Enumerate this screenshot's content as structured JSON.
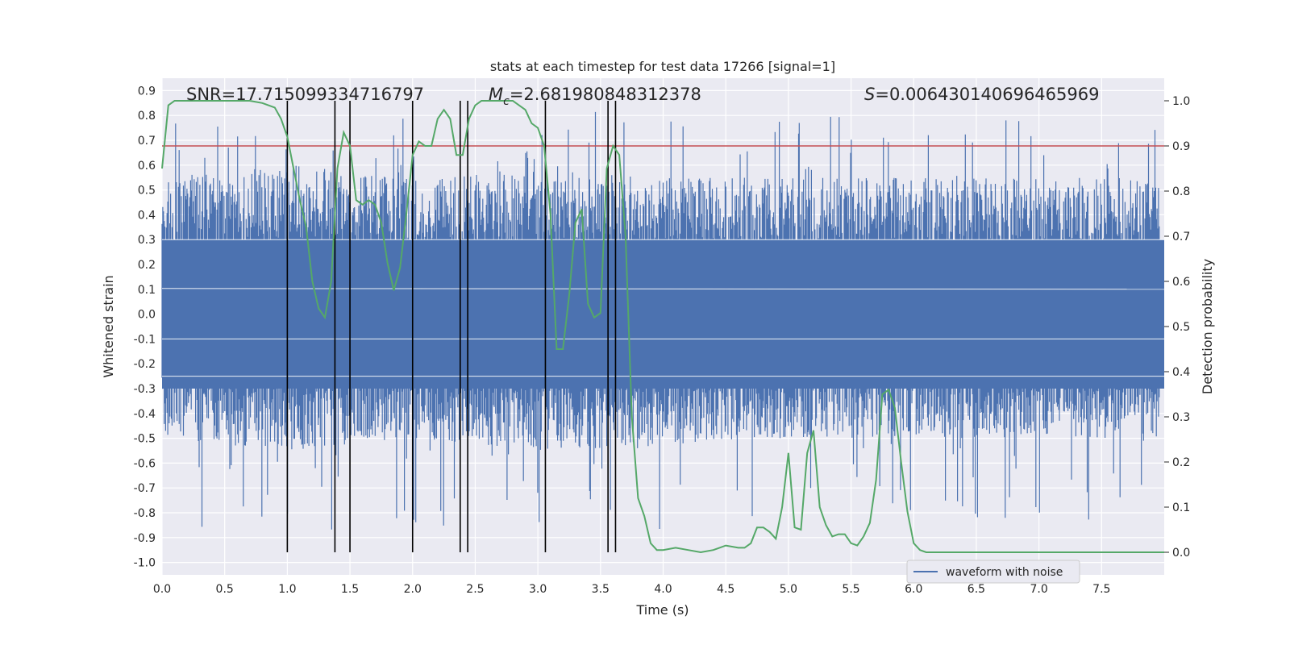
{
  "chart_data": {
    "type": "line",
    "title": "stats at each timestep for test data 17266 [signal=1]",
    "xlabel": "Time (s)",
    "ylabel": "Whitened strain",
    "y2label": "Detection probability",
    "xlim": [
      0.0,
      8.0
    ],
    "ylim": [
      -1.05,
      0.95
    ],
    "y2lim": [
      -0.05,
      1.05
    ],
    "xticks": [
      "0.0",
      "0.5",
      "1.0",
      "1.5",
      "2.0",
      "2.5",
      "3.0",
      "3.5",
      "4.0",
      "4.5",
      "5.0",
      "5.5",
      "6.0",
      "6.5",
      "7.0",
      "7.5"
    ],
    "yticks": [
      "0.9",
      "0.8",
      "0.7",
      "0.6",
      "0.5",
      "0.4",
      "0.3",
      "0.2",
      "0.1",
      "0.0",
      "-0.1",
      "-0.2",
      "-0.3",
      "-0.4",
      "-0.5",
      "-0.6",
      "-0.7",
      "-0.8",
      "-0.9",
      "-1.0"
    ],
    "y2ticks": [
      "1.0",
      "0.9",
      "0.8",
      "0.7",
      "0.6",
      "0.5",
      "0.4",
      "0.3",
      "0.2",
      "0.1",
      "0.0"
    ],
    "grid": true,
    "legend_position": "lower-right",
    "annotations": {
      "snr": "SNR=17.715099334716797",
      "mc_symbol": "M",
      "mc_sub": "c",
      "mc_value": "=2.681980848312378",
      "s_symbol": "S",
      "s_value": "=0.006430140696465969"
    },
    "series": [
      {
        "name": "waveform with noise",
        "axis": "left",
        "color": "#4c72b0",
        "description_envelope": {
          "t": [
            0.0,
            1.0,
            2.0,
            3.0,
            3.8,
            4.5,
            5.5,
            6.5,
            7.5,
            8.0
          ],
          "upper": [
            0.55,
            0.6,
            0.55,
            0.6,
            0.55,
            0.55,
            0.55,
            0.55,
            0.55,
            0.55
          ],
          "lower": [
            -0.5,
            -0.55,
            -0.5,
            -0.55,
            -0.55,
            -0.5,
            -0.5,
            -0.5,
            -0.5,
            -0.5
          ]
        }
      },
      {
        "name": "",
        "axis": "right",
        "color": "#55a868",
        "x": [
          0.0,
          0.05,
          0.1,
          0.2,
          0.3,
          0.4,
          0.5,
          0.6,
          0.7,
          0.8,
          0.9,
          0.95,
          1.0,
          1.05,
          1.1,
          1.15,
          1.2,
          1.25,
          1.3,
          1.35,
          1.4,
          1.45,
          1.5,
          1.55,
          1.6,
          1.65,
          1.7,
          1.75,
          1.8,
          1.85,
          1.9,
          1.95,
          2.0,
          2.05,
          2.1,
          2.15,
          2.2,
          2.25,
          2.3,
          2.35,
          2.4,
          2.45,
          2.5,
          2.55,
          2.6,
          2.7,
          2.8,
          2.9,
          2.95,
          3.0,
          3.05,
          3.1,
          3.15,
          3.2,
          3.25,
          3.3,
          3.35,
          3.4,
          3.45,
          3.5,
          3.55,
          3.6,
          3.65,
          3.7,
          3.75,
          3.8,
          3.85,
          3.9,
          3.95,
          4.0,
          4.1,
          4.2,
          4.3,
          4.4,
          4.5,
          4.6,
          4.65,
          4.7,
          4.75,
          4.8,
          4.85,
          4.9,
          4.95,
          5.0,
          5.05,
          5.1,
          5.15,
          5.2,
          5.25,
          5.3,
          5.35,
          5.4,
          5.45,
          5.5,
          5.55,
          5.6,
          5.65,
          5.7,
          5.75,
          5.8,
          5.85,
          5.9,
          5.95,
          6.0,
          6.05,
          6.1,
          6.15,
          6.2,
          6.3,
          6.4,
          6.5,
          6.6,
          6.8,
          7.0,
          7.2,
          7.4,
          7.6,
          7.8,
          8.0
        ],
        "y": [
          0.85,
          0.99,
          1.0,
          1.0,
          1.0,
          1.0,
          1.0,
          1.0,
          1.0,
          0.995,
          0.985,
          0.96,
          0.92,
          0.85,
          0.78,
          0.72,
          0.6,
          0.54,
          0.52,
          0.6,
          0.85,
          0.93,
          0.9,
          0.78,
          0.77,
          0.78,
          0.77,
          0.73,
          0.64,
          0.58,
          0.63,
          0.75,
          0.88,
          0.91,
          0.9,
          0.9,
          0.96,
          0.98,
          0.96,
          0.88,
          0.88,
          0.96,
          0.99,
          1.0,
          1.0,
          1.0,
          1.0,
          0.98,
          0.95,
          0.94,
          0.9,
          0.75,
          0.45,
          0.45,
          0.57,
          0.73,
          0.76,
          0.55,
          0.52,
          0.53,
          0.85,
          0.9,
          0.88,
          0.7,
          0.3,
          0.12,
          0.08,
          0.02,
          0.005,
          0.005,
          0.01,
          0.005,
          0.0,
          0.005,
          0.015,
          0.01,
          0.01,
          0.02,
          0.055,
          0.055,
          0.045,
          0.03,
          0.1,
          0.22,
          0.055,
          0.05,
          0.22,
          0.27,
          0.1,
          0.06,
          0.035,
          0.04,
          0.04,
          0.02,
          0.015,
          0.035,
          0.065,
          0.16,
          0.35,
          0.36,
          0.32,
          0.2,
          0.09,
          0.02,
          0.005,
          0.0,
          0.0,
          0.0,
          0.0,
          0.0,
          0.0,
          0.0,
          0.0,
          0.0,
          0.0,
          0.0,
          0.0,
          0.0,
          0.0
        ]
      }
    ],
    "threshold_line": {
      "axis": "right",
      "value": 0.9,
      "color": "#c44e52"
    },
    "vertical_lines_x": [
      1.0,
      1.38,
      1.5,
      2.0,
      2.38,
      2.44,
      3.06,
      3.56,
      3.62
    ],
    "vertical_line_color": "#000000"
  }
}
